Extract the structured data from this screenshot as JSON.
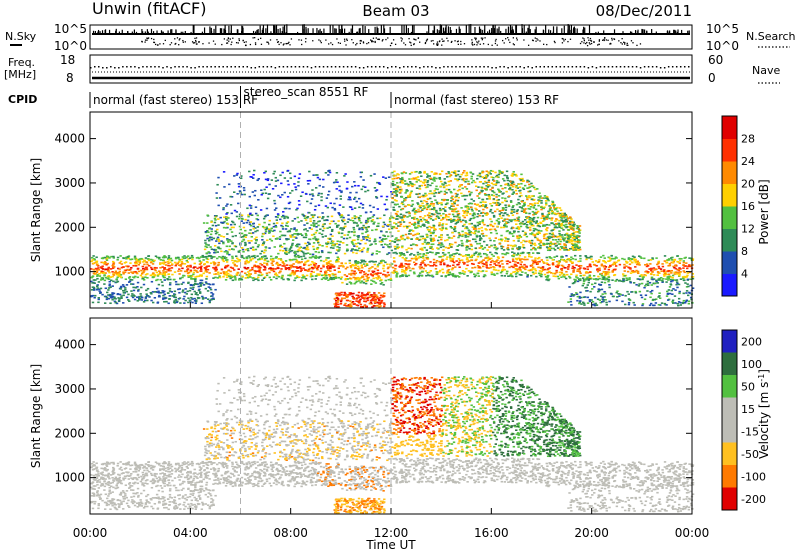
{
  "header": {
    "station": "Unwin (fitACF)",
    "beam": "Beam 03",
    "date": "08/Dec/2011"
  },
  "labels": {
    "nsky": "N.Sky",
    "nsearch": "N.Search",
    "freq_line1": "Freq.",
    "freq_line2": "[MHz]",
    "nave": "Nave",
    "cpid": "CPID",
    "slant_range": "Slant Range [km]",
    "time_axis": "Time UT",
    "power_unit": "Power [dB]",
    "velocity_unit": "Velocity [m s",
    "velocity_unit_sup": "-1",
    "velocity_unit_end": "]"
  },
  "noise_ticks_left": [
    "10^5",
    "10^0"
  ],
  "noise_ticks_right": [
    "10^5",
    "10^0"
  ],
  "freq_ticks_left": [
    "18",
    "8"
  ],
  "nave_ticks_right": [
    "60",
    "0"
  ],
  "cpid": {
    "segments": [
      {
        "label": "normal (fast stereo) 153 RF",
        "start_hour": 0,
        "end_hour": 6
      },
      {
        "label": "stereo_scan 8551 RF",
        "start_hour": 6,
        "end_hour": 12
      },
      {
        "label": "normal (fast stereo) 153 RF",
        "start_hour": 12,
        "end_hour": 24
      }
    ]
  },
  "chart_data": [
    {
      "type": "heatmap",
      "title": "",
      "xlabel": "Time UT",
      "ylabel": "Slant Range [km]",
      "x_ticks": [
        "00:00",
        "04:00",
        "08:00",
        "12:00",
        "16:00",
        "20:00",
        "00:00"
      ],
      "xlim_hours": [
        0,
        24
      ],
      "y_ticks": [
        1000,
        2000,
        3000,
        4000
      ],
      "ylim_km": [
        180,
        4600
      ],
      "colorbar": {
        "label": "Power [dB]",
        "ticks": [
          4,
          8,
          12,
          16,
          20,
          24,
          28
        ],
        "range": [
          0,
          32
        ],
        "colors": [
          "#1a1aff",
          "#1f4fb0",
          "#2e8b57",
          "#52c040",
          "#ffd000",
          "#ff8a00",
          "#ff3000",
          "#e00000"
        ]
      },
      "echo_bands": [
        {
          "hours": [
            0,
            24
          ],
          "range_km": [
            800,
            1400
          ],
          "peak_db": 24
        },
        {
          "hours": [
            6,
            12
          ],
          "range_km": [
            1400,
            2200
          ],
          "peak_db": 12
        },
        {
          "hours": [
            12,
            19.5
          ],
          "range_km": [
            1500,
            3300
          ],
          "peak_db": 20
        },
        {
          "hours": [
            9.5,
            12
          ],
          "range_km": [
            200,
            500
          ],
          "peak_db": 28
        }
      ]
    },
    {
      "type": "heatmap",
      "title": "",
      "xlabel": "Time UT",
      "ylabel": "Slant Range [km]",
      "x_ticks": [
        "00:00",
        "04:00",
        "08:00",
        "12:00",
        "16:00",
        "20:00",
        "00:00"
      ],
      "xlim_hours": [
        0,
        24
      ],
      "y_ticks": [
        1000,
        2000,
        3000,
        4000
      ],
      "ylim_km": [
        180,
        4600
      ],
      "colorbar": {
        "label": "Velocity [m s-1]",
        "ticks": [
          200,
          100,
          50,
          15,
          -15,
          -50,
          -100,
          -200
        ],
        "colors": [
          "#2020c0",
          "#2e6e3e",
          "#52c040",
          "#bdbdb6",
          "#bdbdb6",
          "#ffc020",
          "#ff7a00",
          "#e00000"
        ]
      },
      "echo_bands": [
        {
          "hours": [
            0,
            24
          ],
          "range_km": [
            700,
            1400
          ],
          "velocity": 0
        },
        {
          "hours": [
            12,
            16
          ],
          "range_km": [
            1500,
            3300
          ],
          "velocity": -60
        },
        {
          "hours": [
            16,
            19.5
          ],
          "range_km": [
            1800,
            3300
          ],
          "velocity": 120
        }
      ]
    }
  ],
  "colors": {
    "axis": "#000000",
    "guide": "#b0b0b0",
    "background": "#ffffff"
  }
}
